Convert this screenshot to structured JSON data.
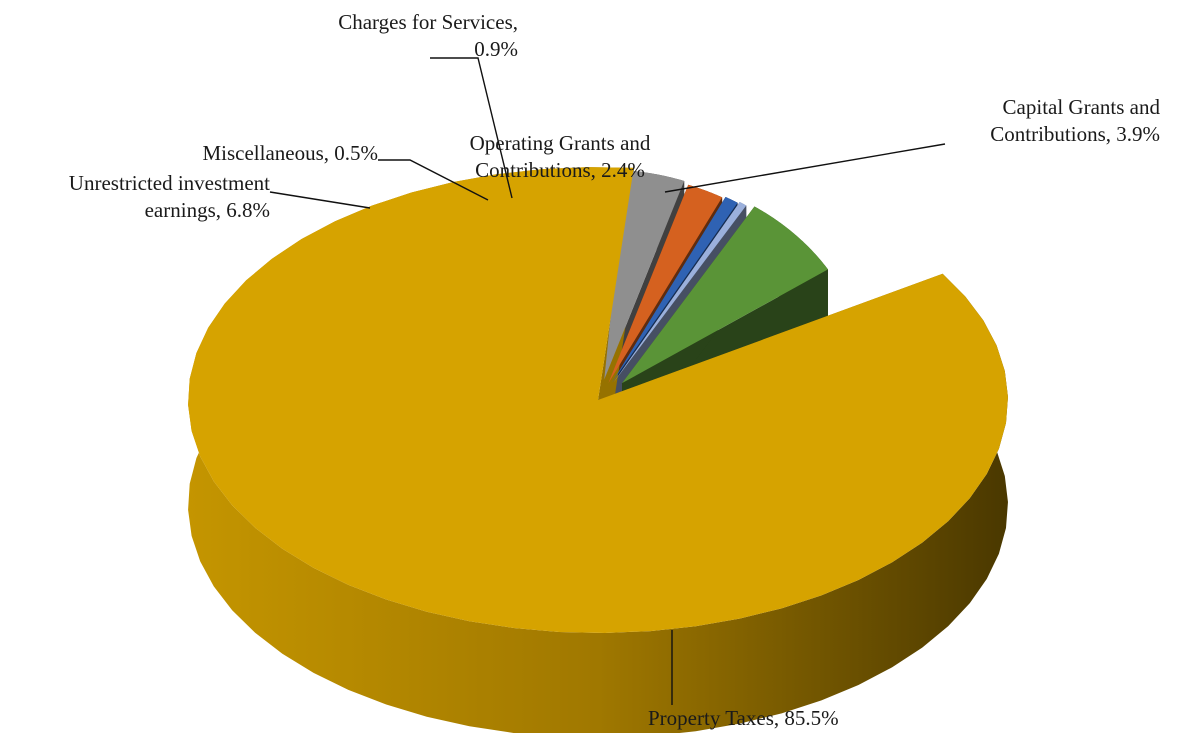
{
  "chart_data": {
    "type": "pie",
    "title": "",
    "style": "3d-exploded",
    "slices": [
      {
        "label": "Property Taxes",
        "value": 85.5,
        "value_label": "85.5%",
        "color": "#d6a300"
      },
      {
        "label": "Unrestricted investment earnings",
        "value": 6.8,
        "value_label": "6.8%",
        "color": "#5a9437"
      },
      {
        "label": "Miscellaneous",
        "value": 0.5,
        "value_label": "0.5%",
        "color": "#9bb0dc"
      },
      {
        "label": "Charges for Services",
        "value": 0.9,
        "value_label": "0.9%",
        "color": "#2f62b3"
      },
      {
        "label": "Operating Grants and Contributions",
        "value": 2.4,
        "value_label": "2.4%",
        "color": "#d5611f"
      },
      {
        "label": "Capital Grants and Contributions",
        "value": 3.9,
        "value_label": "3.9%",
        "color": "#8f8f8f"
      }
    ],
    "data_labels": [
      {
        "lines": [
          "Property Taxes, 85.5%"
        ]
      },
      {
        "lines": [
          "Unrestricted investment",
          "earnings, 6.8%"
        ]
      },
      {
        "lines": [
          "Miscellaneous, 0.5%"
        ]
      },
      {
        "lines": [
          "Charges for Services,",
          "0.9%"
        ]
      },
      {
        "lines": [
          "Operating Grants and",
          "Contributions, 2.4%"
        ]
      },
      {
        "lines": [
          "Capital Grants and",
          "Contributions, 3.9%"
        ]
      }
    ],
    "legend": "none",
    "grid": false
  }
}
